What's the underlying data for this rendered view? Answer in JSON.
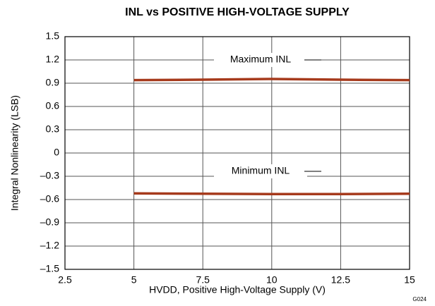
{
  "chart_data": {
    "type": "line",
    "title": "INL vs POSITIVE HIGH-VOLTAGE SUPPLY",
    "x_label": "HVDD, Positive High-Voltage Supply (V)",
    "y_label": "Integral Nonlinearity (LSB)",
    "x": [
      5,
      7.5,
      10,
      12.5,
      15
    ],
    "series": [
      {
        "name": "Maximum INL",
        "color": "#a63a1c",
        "values": [
          0.94,
          0.945,
          0.955,
          0.945,
          0.94
        ]
      },
      {
        "name": "Minimum INL",
        "color": "#a63a1c",
        "values": [
          -0.52,
          -0.525,
          -0.53,
          -0.53,
          -0.525
        ]
      }
    ],
    "xlim": [
      2.5,
      15
    ],
    "xticks": [
      2.5,
      5,
      7.5,
      10,
      12.5,
      15
    ],
    "ylim": [
      -1.5,
      1.5
    ],
    "yticks": [
      {
        "value": -1.5,
        "label": "–1.5"
      },
      {
        "value": -1.2,
        "label": "–1.2"
      },
      {
        "value": -0.9,
        "label": "–0.9"
      },
      {
        "value": -0.6,
        "label": "–0.6"
      },
      {
        "value": -0.3,
        "label": "–0.3"
      },
      0,
      0.3,
      0.6,
      0.9,
      1.2,
      1.5
    ],
    "grid": true,
    "annotations": [
      "G024"
    ]
  }
}
